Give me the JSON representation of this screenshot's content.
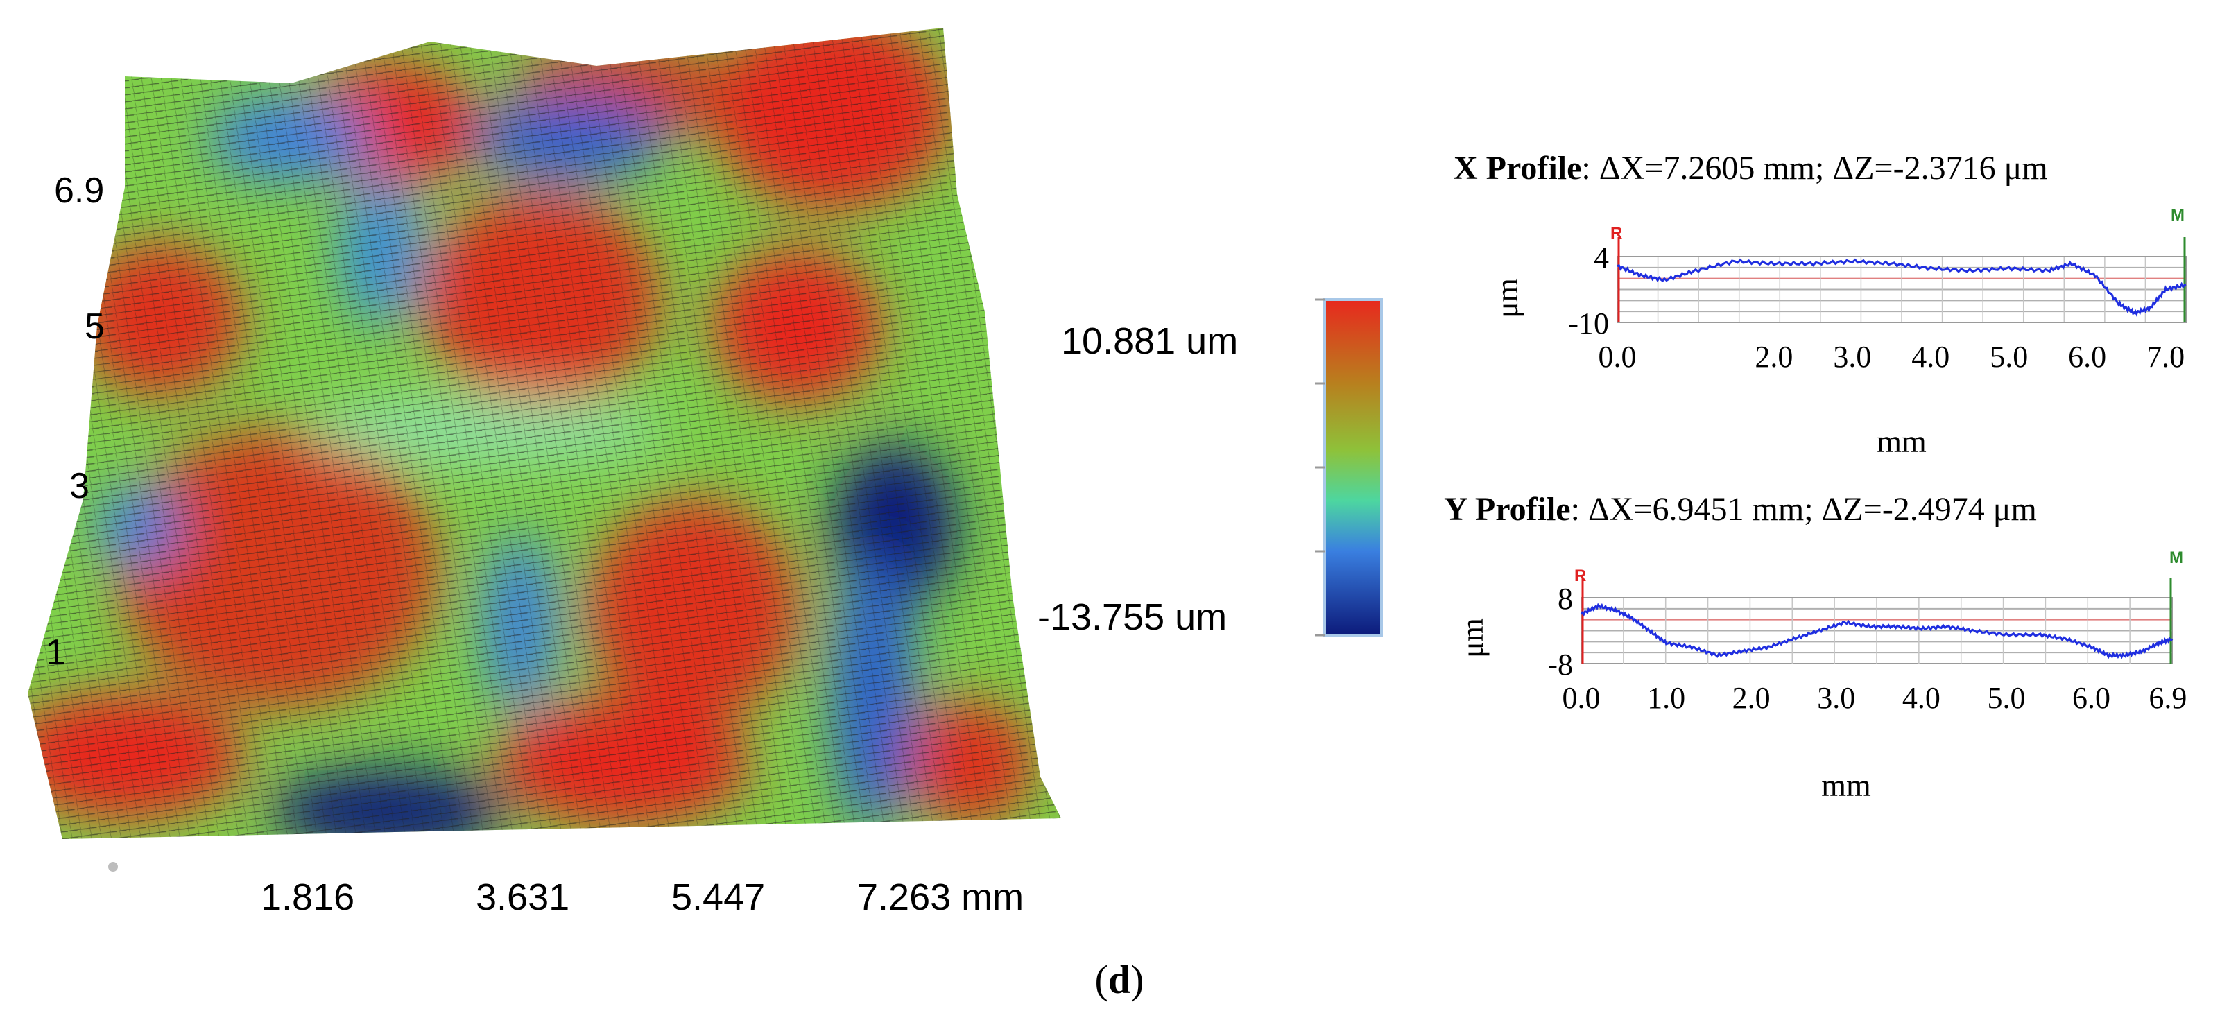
{
  "figure_label": "d",
  "colors": {
    "high": "#e8281e",
    "mid": "#8ec23a",
    "low": "#1a2f9c",
    "profile_line": "#1f2ee0",
    "ref_marker": "#e02020",
    "meas_marker": "#2e8b2e"
  },
  "surface": {
    "y_visible_labels": [
      "6.9",
      "5",
      "3",
      "1"
    ],
    "colorbar_max": "10.881 um",
    "colorbar_min": "-13.755 um"
  },
  "chart_data": [
    {
      "type": "heatmap",
      "name_hidden": "surface",
      "x_ticks": [
        "1.816",
        "3.631",
        "5.447",
        "7.263 mm"
      ],
      "y_ticks": [
        "6.9",
        "5",
        "3",
        "1"
      ],
      "zlim": [
        -13.755,
        10.881
      ],
      "zunit": "um"
    },
    {
      "type": "line",
      "title_bold": "X Profile",
      "title_rest": ": ΔX=7.2605 mm; ΔZ=-2.3716 μm",
      "xlabel": "mm",
      "ylabel": "μm",
      "xlim": [
        0,
        7.26
      ],
      "ylim": [
        -10,
        4
      ],
      "xticks": [
        "0.0",
        "2.0",
        "3.0",
        "4.0",
        "5.0",
        "6.0",
        "7.0"
      ],
      "xtick_values": [
        0,
        2,
        3,
        4,
        5,
        6,
        7
      ],
      "yticks": [
        "4",
        "-10"
      ],
      "yticks_values": [
        4,
        -10
      ],
      "ref_label": "R",
      "meas_label": "M",
      "x": [
        0,
        0.3,
        0.6,
        1.0,
        1.5,
        2.0,
        2.5,
        3.0,
        3.5,
        4.0,
        4.5,
        5.0,
        5.5,
        5.8,
        6.1,
        6.4,
        6.6,
        6.8,
        7.0,
        7.26
      ],
      "y": [
        2,
        0,
        -1,
        1,
        3,
        2.5,
        2.5,
        3,
        2.5,
        1.5,
        1,
        1.5,
        1,
        2.5,
        0,
        -6,
        -8,
        -7,
        -3,
        -2
      ]
    },
    {
      "type": "line",
      "title_bold": "Y Profile",
      "title_rest": ": ΔX=6.9451 mm; ΔZ=-2.4974 μm",
      "xlabel": "mm",
      "ylabel": "μm",
      "xlim": [
        0,
        6.95
      ],
      "ylim": [
        -8,
        8
      ],
      "xticks": [
        "0.0",
        "1.0",
        "2.0",
        "3.0",
        "4.0",
        "5.0",
        "6.0",
        "6.9"
      ],
      "xtick_values": [
        0,
        1,
        2,
        3,
        4,
        5,
        6,
        6.9
      ],
      "yticks": [
        "8",
        "-8"
      ],
      "yticks_values": [
        8,
        -8
      ],
      "ref_label": "R",
      "meas_label": "M",
      "x": [
        0,
        0.2,
        0.4,
        0.6,
        0.8,
        1.0,
        1.3,
        1.6,
        1.9,
        2.2,
        2.5,
        2.8,
        3.1,
        3.4,
        3.7,
        4.0,
        4.3,
        4.6,
        5.0,
        5.4,
        5.7,
        6.0,
        6.2,
        6.4,
        6.6,
        6.8,
        6.95
      ],
      "y": [
        4,
        6,
        5,
        3,
        0,
        -3,
        -4,
        -6,
        -5,
        -4,
        -2,
        0,
        2,
        1,
        1,
        0.5,
        1,
        0,
        -1,
        -1,
        -2,
        -4,
        -6,
        -6,
        -5,
        -3,
        -2
      ]
    }
  ]
}
